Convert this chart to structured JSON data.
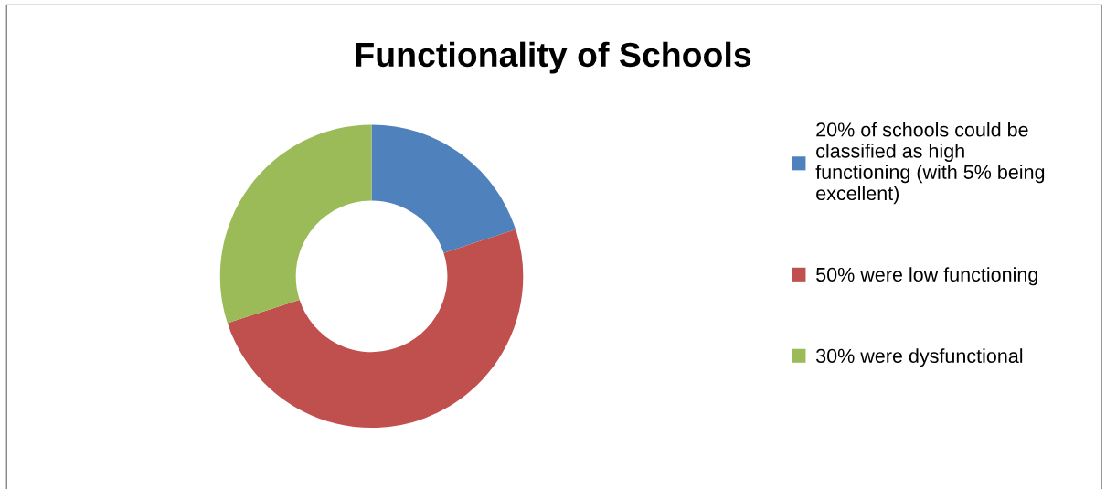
{
  "chart_data": {
    "type": "donut",
    "title": "Functionality of Schools",
    "categories": [
      "20% of schools could be classified as high functioning (with 5% being excellent)",
      "50% were low functioning",
      "30% were dysfunctional"
    ],
    "values": [
      20,
      50,
      30
    ],
    "colors": [
      "#4f81bd",
      "#c0504d",
      "#9bbb59"
    ],
    "legend": "right"
  }
}
